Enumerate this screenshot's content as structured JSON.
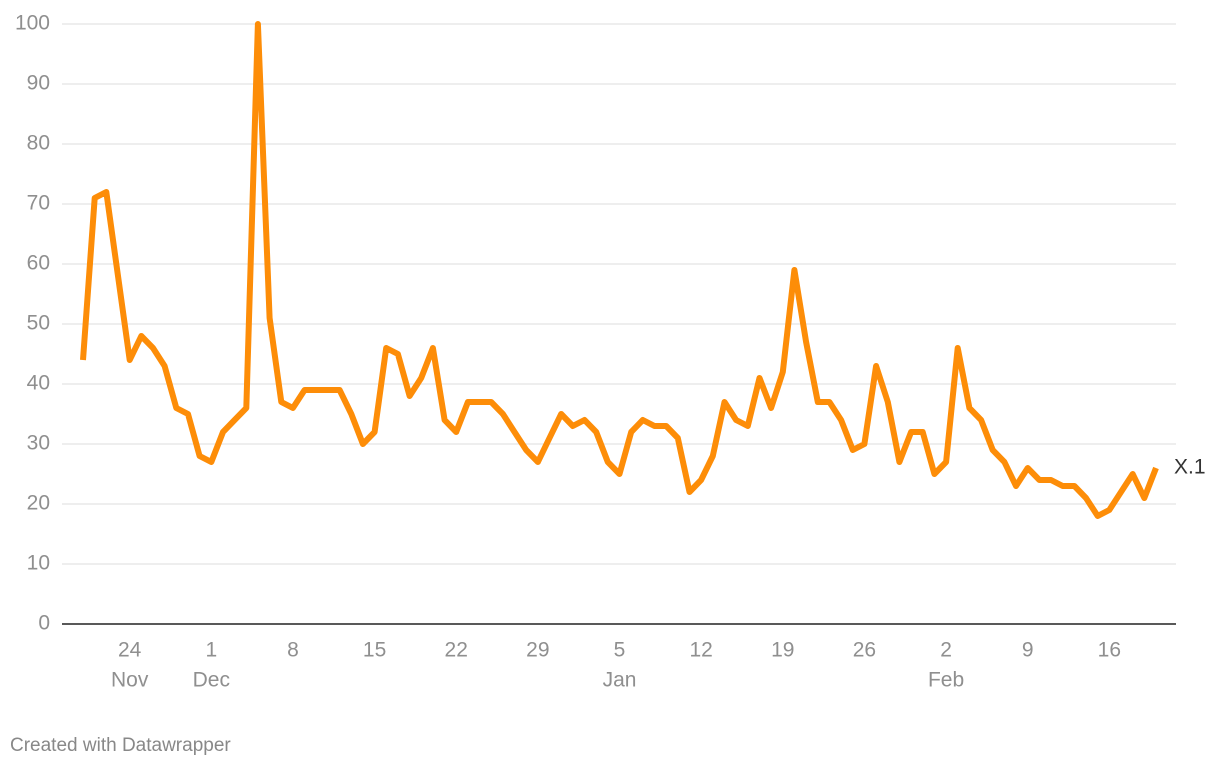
{
  "chart_data": {
    "type": "line",
    "x": [
      "Nov 20",
      "Nov 21",
      "Nov 22",
      "Nov 23",
      "Nov 24",
      "Nov 25",
      "Nov 26",
      "Nov 27",
      "Nov 28",
      "Nov 29",
      "Nov 30",
      "Dec 1",
      "Dec 2",
      "Dec 3",
      "Dec 4",
      "Dec 5",
      "Dec 6",
      "Dec 7",
      "Dec 8",
      "Dec 9",
      "Dec 10",
      "Dec 11",
      "Dec 12",
      "Dec 13",
      "Dec 14",
      "Dec 15",
      "Dec 16",
      "Dec 17",
      "Dec 18",
      "Dec 19",
      "Dec 20",
      "Dec 21",
      "Dec 22",
      "Dec 23",
      "Dec 24",
      "Dec 25",
      "Dec 26",
      "Dec 27",
      "Dec 28",
      "Dec 29",
      "Dec 30",
      "Dec 31",
      "Jan 1",
      "Jan 2",
      "Jan 3",
      "Jan 4",
      "Jan 5",
      "Jan 6",
      "Jan 7",
      "Jan 8",
      "Jan 9",
      "Jan 10",
      "Jan 11",
      "Jan 12",
      "Jan 13",
      "Jan 14",
      "Jan 15",
      "Jan 16",
      "Jan 17",
      "Jan 18",
      "Jan 19",
      "Jan 20",
      "Jan 21",
      "Jan 22",
      "Jan 23",
      "Jan 24",
      "Jan 25",
      "Jan 26",
      "Jan 27",
      "Jan 28",
      "Jan 29",
      "Jan 30",
      "Jan 31",
      "Feb 1",
      "Feb 2",
      "Feb 3",
      "Feb 4",
      "Feb 5",
      "Feb 6",
      "Feb 7",
      "Feb 8",
      "Feb 9",
      "Feb 10",
      "Feb 11",
      "Feb 12",
      "Feb 13",
      "Feb 14",
      "Feb 15",
      "Feb 16",
      "Feb 17",
      "Feb 18",
      "Feb 19",
      "Feb 20"
    ],
    "series": [
      {
        "name": "X.1",
        "color": "#fd8d08",
        "values": [
          44,
          71,
          72,
          58,
          44,
          48,
          46,
          43,
          36,
          35,
          28,
          27,
          32,
          34,
          36,
          100,
          51,
          37,
          36,
          39,
          39,
          39,
          39,
          35,
          30,
          32,
          46,
          45,
          38,
          41,
          46,
          34,
          32,
          37,
          37,
          37,
          35,
          32,
          29,
          27,
          31,
          35,
          33,
          34,
          32,
          27,
          25,
          32,
          34,
          33,
          33,
          31,
          22,
          24,
          28,
          37,
          34,
          33,
          41,
          36,
          42,
          59,
          47,
          37,
          37,
          34,
          29,
          30,
          43,
          37,
          27,
          32,
          32,
          25,
          27,
          46,
          36,
          34,
          29,
          27,
          23,
          26,
          24,
          24,
          23,
          23,
          21,
          18,
          19,
          22,
          25,
          21,
          26
        ]
      }
    ],
    "ylim": [
      0,
      100
    ],
    "yticks": [
      0,
      10,
      20,
      30,
      40,
      50,
      60,
      70,
      80,
      90,
      100
    ],
    "grid": true,
    "xticks": [
      {
        "value": "Nov 24",
        "label": "24"
      },
      {
        "value": "Dec 1",
        "label": "1"
      },
      {
        "value": "Dec 8",
        "label": "8"
      },
      {
        "value": "Dec 15",
        "label": "15"
      },
      {
        "value": "Dec 22",
        "label": "22"
      },
      {
        "value": "Dec 29",
        "label": "29"
      },
      {
        "value": "Jan 5",
        "label": "5"
      },
      {
        "value": "Jan 12",
        "label": "12"
      },
      {
        "value": "Jan 19",
        "label": "19"
      },
      {
        "value": "Jan 26",
        "label": "26"
      },
      {
        "value": "Feb 2",
        "label": "2"
      },
      {
        "value": "Feb 9",
        "label": "9"
      },
      {
        "value": "Feb 16",
        "label": "16"
      }
    ],
    "month_labels": [
      {
        "value": "Nov 24",
        "label": "Nov"
      },
      {
        "value": "Dec 1",
        "label": "Dec"
      },
      {
        "value": "Jan 5",
        "label": "Jan"
      },
      {
        "value": "Feb 2",
        "label": "Feb"
      }
    ],
    "footer": "Created with Datawrapper"
  }
}
